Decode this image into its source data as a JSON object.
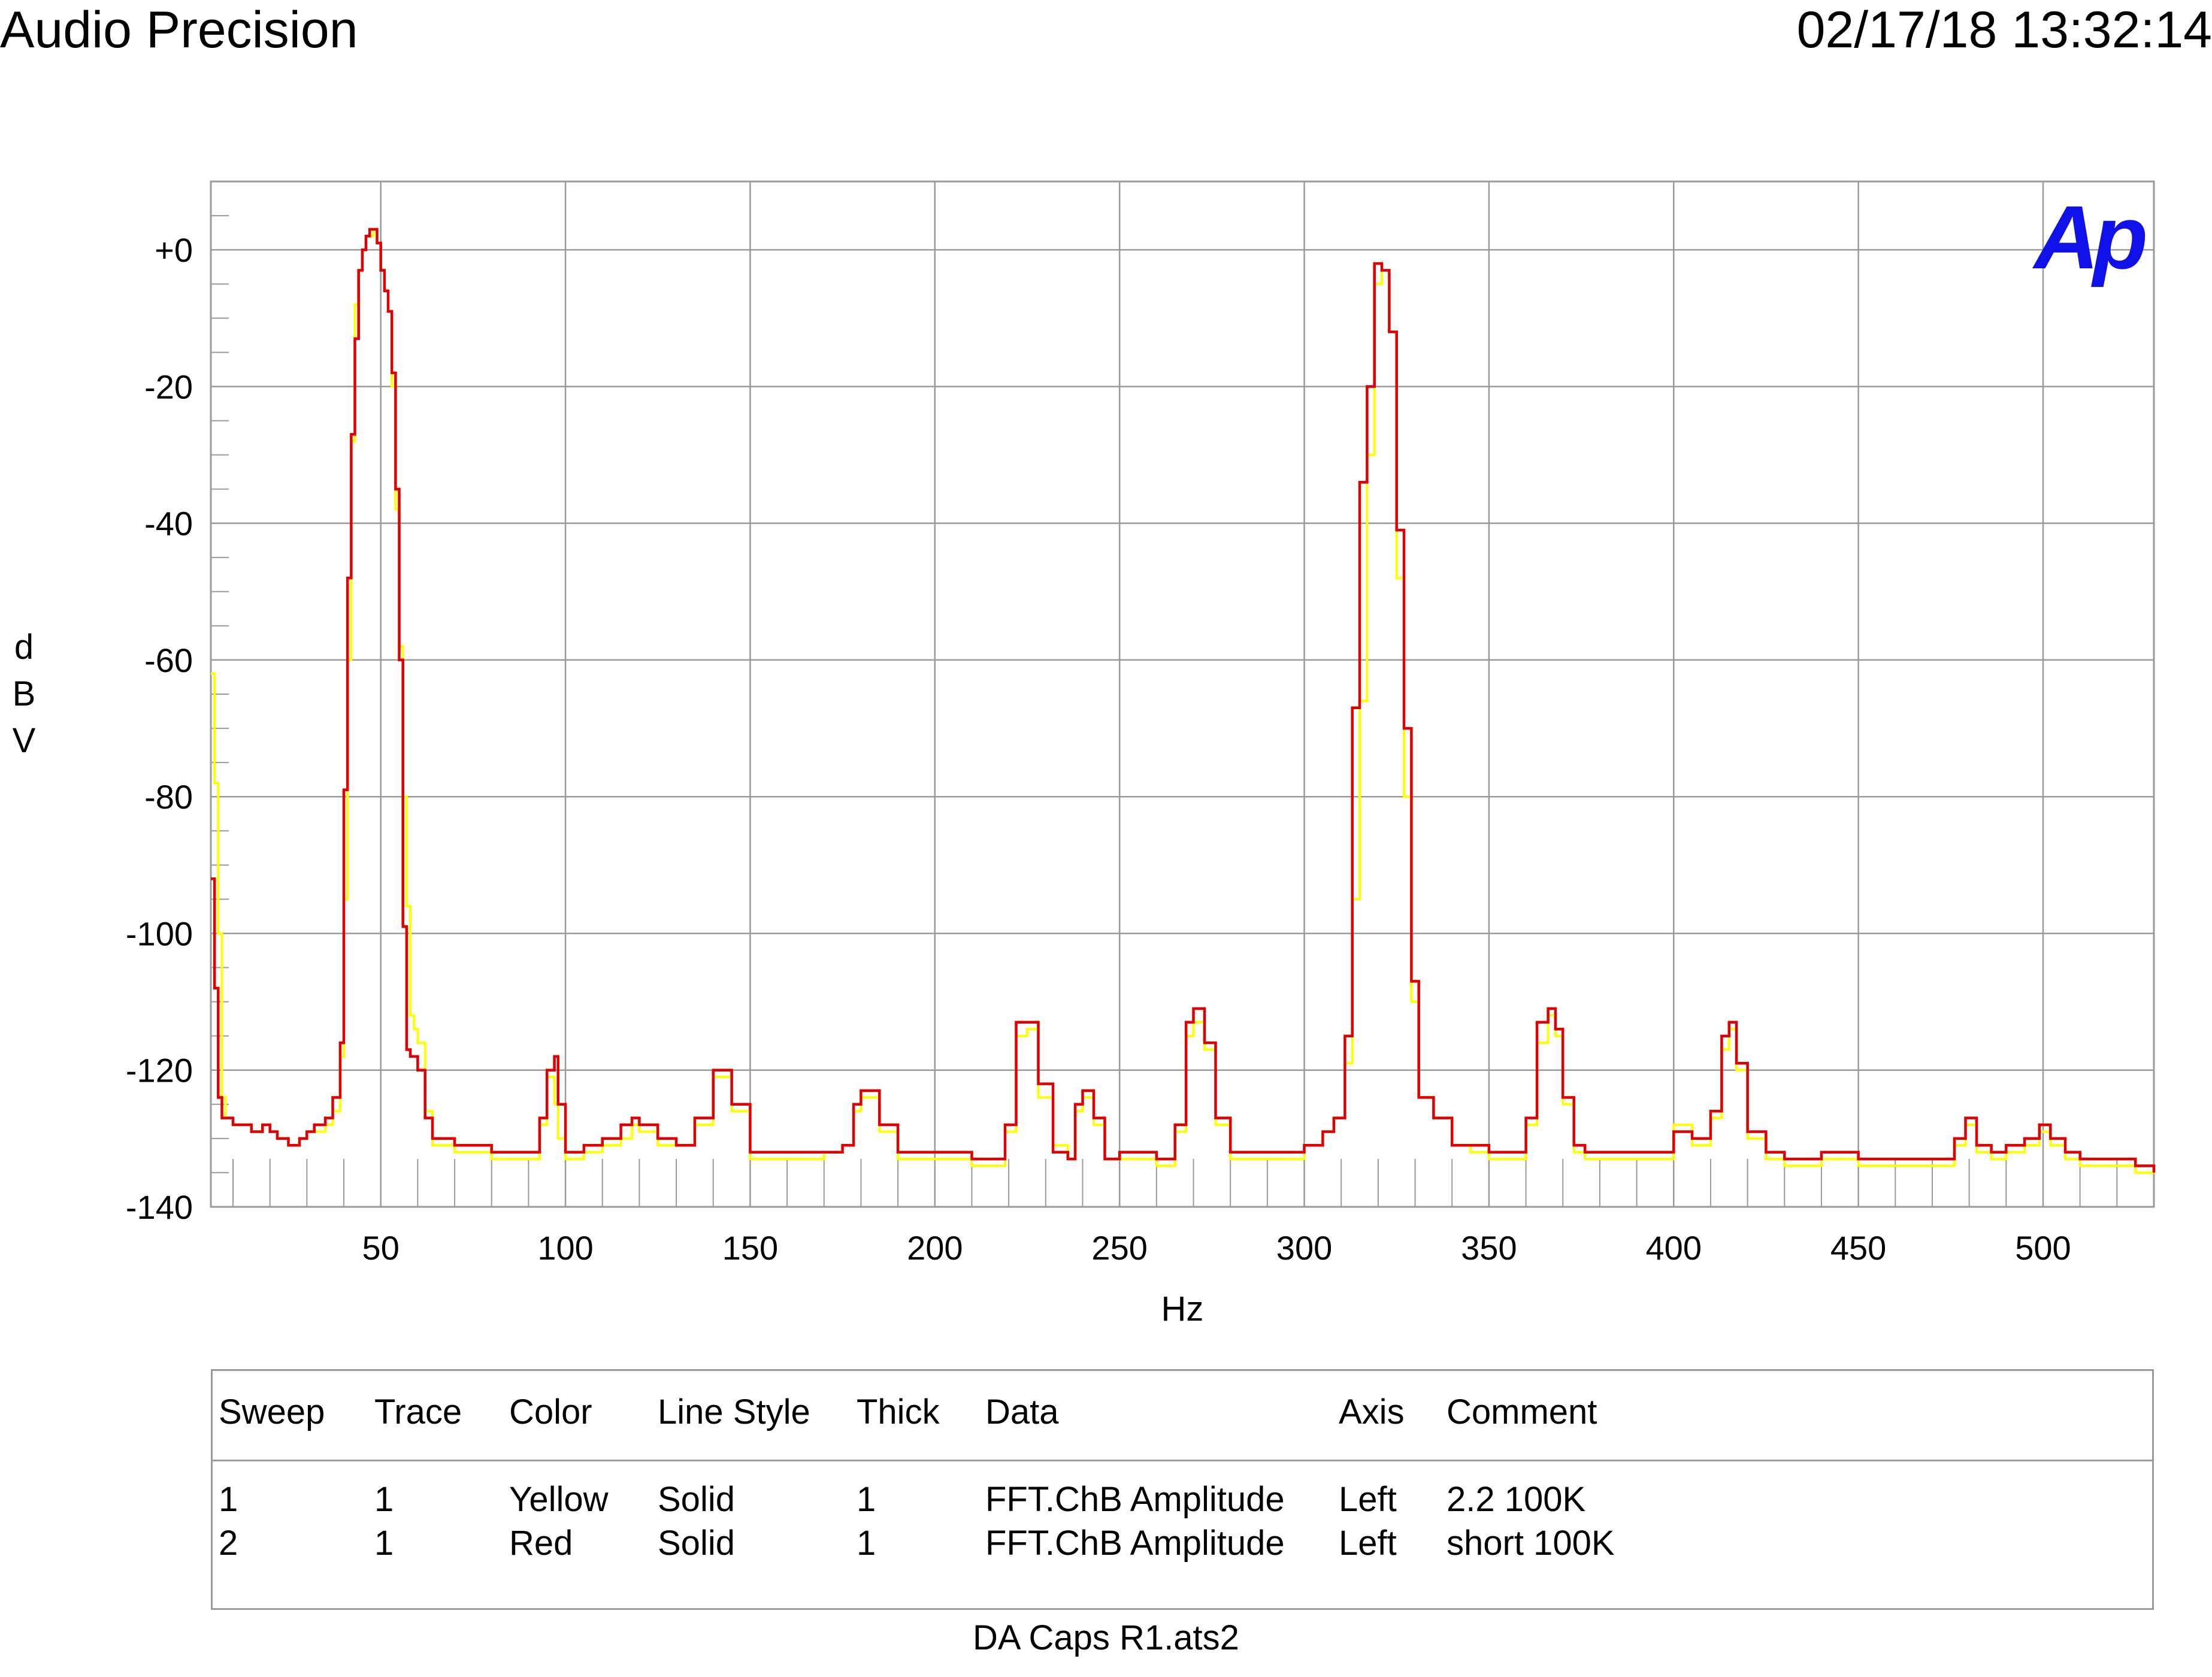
{
  "header": {
    "left": "Audio Precision",
    "right": "02/17/18 13:32:14"
  },
  "colors": {
    "yellow": "#ffff00",
    "red": "#e00000",
    "grid": "#9a9a9a",
    "logo": "#1010e8"
  },
  "logo": {
    "text": "Ap"
  },
  "chart_data": {
    "type": "line",
    "xlabel": "Hz",
    "ylabel": "dBV",
    "xlim": [
      4,
      530
    ],
    "ylim": [
      -140,
      10
    ],
    "x_ticks": [
      50,
      100,
      150,
      200,
      250,
      300,
      350,
      400,
      450,
      500
    ],
    "x_tick_labels": [
      "50",
      "100",
      "150",
      "200",
      "250",
      "300",
      "350",
      "400",
      "450",
      "500"
    ],
    "y_ticks": [
      0,
      -20,
      -40,
      -60,
      -80,
      -100,
      -120,
      -140
    ],
    "y_tick_labels": [
      "+0",
      "-20",
      "-40",
      "-60",
      "-80",
      "-100",
      "-120",
      "-140"
    ],
    "grid": true,
    "series": [
      {
        "name": "2.2 100K",
        "color": "#ffff00",
        "x": [
          4,
          5,
          6,
          7,
          8,
          10,
          12,
          15,
          18,
          20,
          22,
          25,
          28,
          30,
          32,
          35,
          37,
          39,
          40,
          41,
          42,
          43,
          44,
          45,
          46,
          47,
          48,
          49,
          50,
          51,
          52,
          53,
          54,
          55,
          56,
          57,
          58,
          59,
          60,
          62,
          64,
          66,
          70,
          75,
          80,
          85,
          90,
          93,
          95,
          97,
          98,
          100,
          105,
          110,
          115,
          118,
          120,
          125,
          130,
          135,
          140,
          142,
          145,
          150,
          160,
          170,
          175,
          178,
          180,
          185,
          190,
          200,
          210,
          215,
          219,
          222,
          225,
          228,
          232,
          236,
          238,
          240,
          243,
          246,
          250,
          255,
          260,
          265,
          268,
          270,
          273,
          276,
          280,
          290,
          300,
          305,
          308,
          311,
          313,
          315,
          317,
          319,
          321,
          323,
          325,
          327,
          329,
          331,
          335,
          340,
          345,
          350,
          355,
          360,
          363,
          366,
          368,
          370,
          373,
          376,
          380,
          390,
          400,
          405,
          410,
          413,
          415,
          417,
          420,
          425,
          430,
          440,
          450,
          460,
          470,
          476,
          479,
          482,
          486,
          490,
          495,
          499,
          502,
          506,
          510,
          515,
          520,
          525,
          530
        ],
        "y": [
          -62,
          -78,
          -100,
          -124,
          -127,
          -128,
          -128,
          -129,
          -128,
          -129,
          -130,
          -131,
          -130,
          -129,
          -129,
          -128,
          -126,
          -118,
          -95,
          -60,
          -28,
          -8,
          -3,
          0,
          2,
          2,
          3,
          1,
          -3,
          -6,
          -9,
          -20,
          -38,
          -58,
          -80,
          -96,
          -112,
          -114,
          -116,
          -126,
          -131,
          -131,
          -132,
          -132,
          -133,
          -133,
          -133,
          -128,
          -121,
          -125,
          -130,
          -133,
          -132,
          -131,
          -130,
          -128,
          -129,
          -131,
          -131,
          -128,
          -121,
          -121,
          -126,
          -133,
          -133,
          -132,
          -131,
          -126,
          -124,
          -129,
          -133,
          -133,
          -134,
          -134,
          -129,
          -115,
          -114,
          -124,
          -131,
          -133,
          -126,
          -124,
          -128,
          -133,
          -133,
          -133,
          -134,
          -129,
          -115,
          -113,
          -117,
          -128,
          -133,
          -133,
          -131,
          -129,
          -127,
          -119,
          -95,
          -66,
          -30,
          -5,
          -3,
          -12,
          -48,
          -80,
          -110,
          -124,
          -127,
          -131,
          -132,
          -133,
          -133,
          -128,
          -116,
          -112,
          -115,
          -125,
          -132,
          -133,
          -133,
          -133,
          -128,
          -131,
          -127,
          -117,
          -114,
          -120,
          -130,
          -133,
          -134,
          -133,
          -134,
          -134,
          -134,
          -131,
          -128,
          -132,
          -133,
          -132,
          -131,
          -129,
          -131,
          -133,
          -134,
          -134,
          -134,
          -135,
          -134
        ]
      },
      {
        "name": "short 100K",
        "color": "#e00000",
        "x": [
          4,
          5,
          6,
          7,
          8,
          10,
          12,
          15,
          18,
          20,
          22,
          25,
          28,
          30,
          32,
          35,
          37,
          39,
          40,
          41,
          42,
          43,
          44,
          45,
          46,
          47,
          48,
          49,
          50,
          51,
          52,
          53,
          54,
          55,
          56,
          57,
          58,
          59,
          60,
          62,
          64,
          66,
          70,
          75,
          80,
          85,
          90,
          93,
          95,
          97,
          98,
          100,
          105,
          110,
          115,
          118,
          120,
          125,
          130,
          135,
          140,
          142,
          145,
          150,
          160,
          170,
          175,
          178,
          180,
          185,
          190,
          200,
          210,
          215,
          219,
          222,
          225,
          228,
          232,
          236,
          238,
          240,
          243,
          246,
          250,
          255,
          260,
          265,
          268,
          270,
          273,
          276,
          280,
          290,
          300,
          305,
          308,
          311,
          313,
          315,
          317,
          319,
          321,
          323,
          325,
          327,
          329,
          331,
          335,
          340,
          345,
          350,
          355,
          360,
          363,
          366,
          368,
          370,
          373,
          376,
          380,
          390,
          400,
          405,
          410,
          413,
          415,
          417,
          420,
          425,
          430,
          440,
          450,
          460,
          470,
          476,
          479,
          482,
          486,
          490,
          495,
          499,
          502,
          506,
          510,
          515,
          520,
          525,
          530
        ],
        "y": [
          -92,
          -108,
          -124,
          -127,
          -127,
          -128,
          -128,
          -129,
          -128,
          -129,
          -130,
          -131,
          -130,
          -129,
          -128,
          -127,
          -124,
          -116,
          -79,
          -48,
          -27,
          -13,
          -3,
          0,
          2,
          3,
          3,
          1,
          -3,
          -6,
          -9,
          -18,
          -35,
          -60,
          -99,
          -117,
          -118,
          -118,
          -120,
          -127,
          -130,
          -130,
          -131,
          -131,
          -132,
          -132,
          -132,
          -127,
          -120,
          -118,
          -125,
          -132,
          -131,
          -130,
          -128,
          -127,
          -128,
          -130,
          -131,
          -127,
          -120,
          -120,
          -125,
          -132,
          -132,
          -132,
          -131,
          -125,
          -123,
          -128,
          -132,
          -132,
          -133,
          -133,
          -128,
          -113,
          -113,
          -122,
          -132,
          -133,
          -125,
          -123,
          -127,
          -133,
          -132,
          -132,
          -133,
          -128,
          -113,
          -111,
          -116,
          -127,
          -132,
          -132,
          -131,
          -129,
          -127,
          -115,
          -67,
          -34,
          -20,
          -2,
          -3,
          -12,
          -41,
          -70,
          -107,
          -124,
          -127,
          -131,
          -131,
          -132,
          -132,
          -127,
          -113,
          -111,
          -114,
          -124,
          -131,
          -132,
          -132,
          -132,
          -129,
          -130,
          -126,
          -115,
          -113,
          -119,
          -129,
          -132,
          -133,
          -132,
          -133,
          -133,
          -133,
          -130,
          -127,
          -131,
          -132,
          -131,
          -130,
          -128,
          -130,
          -132,
          -133,
          -133,
          -133,
          -134,
          -135
        ]
      }
    ]
  },
  "legend": {
    "headers": [
      "Sweep",
      "Trace",
      "Color",
      "Line Style",
      "Thick",
      "Data",
      "Axis",
      "Comment"
    ],
    "rows": [
      [
        "1",
        "1",
        "Yellow",
        "Solid",
        "1",
        "FFT.ChB Amplitude",
        "Left",
        "2.2 100K"
      ],
      [
        "2",
        "1",
        "Red",
        "Solid",
        "1",
        "FFT.ChB Amplitude",
        "Left",
        "short 100K"
      ]
    ]
  },
  "footer": "DA Caps R1.ats2"
}
